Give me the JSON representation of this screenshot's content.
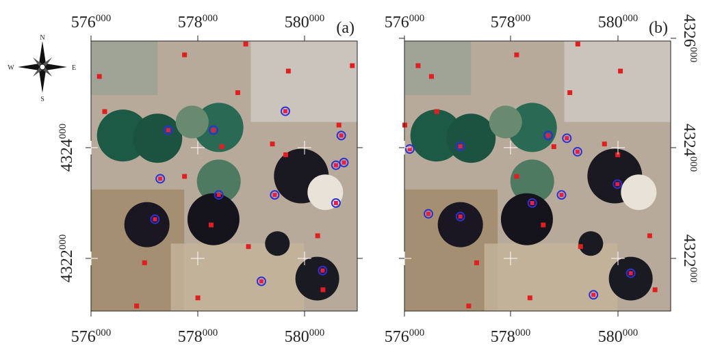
{
  "compass": {
    "n": "N",
    "s": "S",
    "e": "E",
    "w": "W"
  },
  "panels": [
    {
      "label": "(a)",
      "x_ticks": [
        [
          "576",
          "000"
        ],
        [
          "578",
          "000"
        ],
        [
          "580",
          "000"
        ]
      ],
      "y_ticks": [
        [
          "4324",
          "000"
        ],
        [
          "4322",
          "000"
        ]
      ]
    },
    {
      "label": "(b)",
      "x_ticks": [
        [
          "576",
          "000"
        ],
        [
          "578",
          "000"
        ],
        [
          "580",
          "000"
        ]
      ],
      "y_ticks": [
        [
          "4326",
          "000"
        ],
        [
          "4324",
          "000"
        ],
        [
          "4322",
          "000"
        ]
      ]
    }
  ]
}
